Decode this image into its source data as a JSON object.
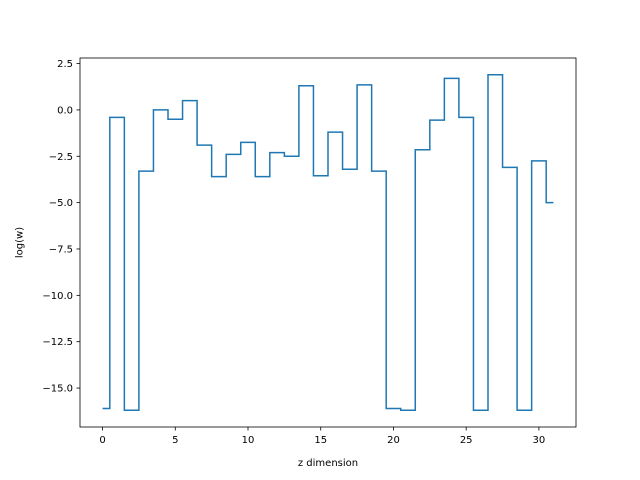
{
  "chart_data": {
    "type": "line",
    "drawstyle": "steps-mid",
    "title": "",
    "xlabel": "z dimension",
    "ylabel": "log(w)",
    "xlim": [
      -1.55,
      32.55
    ],
    "ylim": [
      -17.1,
      2.8
    ],
    "xticks": [
      0,
      5,
      10,
      15,
      20,
      25,
      30
    ],
    "yticks": [
      2.5,
      0.0,
      -2.5,
      -5.0,
      -7.5,
      -10.0,
      -12.5,
      -15.0
    ],
    "ytick_labels": [
      "2.5",
      "0.0",
      "−2.5",
      "−5.0",
      "−7.5",
      "−10.0",
      "−12.5",
      "−15.0"
    ],
    "grid": false,
    "series": [
      {
        "color": "#1f77b4",
        "x": [
          0,
          1,
          2,
          3,
          4,
          5,
          6,
          7,
          8,
          9,
          10,
          11,
          12,
          13,
          14,
          15,
          16,
          17,
          18,
          19,
          20,
          21,
          22,
          23,
          24,
          25,
          26,
          27,
          28,
          29,
          30,
          31
        ],
        "values": [
          -16.1,
          -0.4,
          -16.2,
          -3.3,
          0.0,
          -0.5,
          0.5,
          -1.9,
          -3.6,
          -2.4,
          -1.75,
          -3.6,
          -2.3,
          -2.5,
          1.3,
          -3.55,
          -1.2,
          -3.2,
          1.35,
          -3.3,
          -16.1,
          -16.2,
          -2.15,
          -0.55,
          1.7,
          -0.4,
          -16.2,
          1.9,
          -3.1,
          -16.2,
          -2.75,
          -5.0
        ]
      }
    ]
  }
}
